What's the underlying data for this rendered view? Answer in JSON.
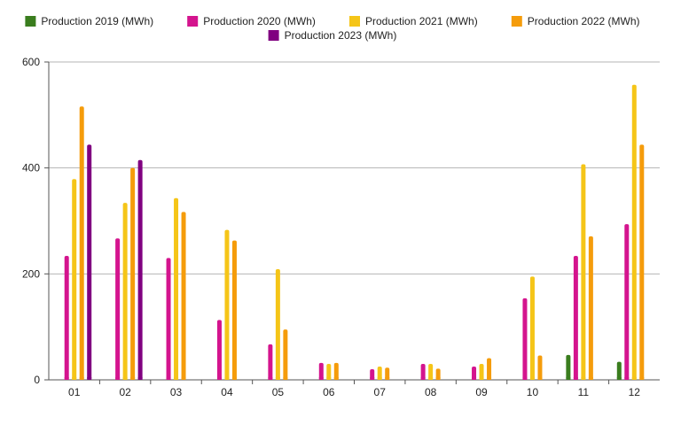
{
  "chart_data": {
    "type": "bar",
    "title": "",
    "xlabel": "",
    "ylabel": "",
    "categories": [
      "01",
      "02",
      "03",
      "04",
      "05",
      "06",
      "07",
      "08",
      "09",
      "10",
      "11",
      "12"
    ],
    "yticks": [
      0,
      200,
      400,
      600
    ],
    "ylim": [
      0,
      600
    ],
    "grid": true,
    "legend_position": "top-center",
    "series": [
      {
        "name": "Production 2019 (MWh)",
        "color": "#3a7d1e",
        "values": [
          null,
          null,
          null,
          null,
          null,
          null,
          null,
          null,
          null,
          null,
          47,
          34
        ]
      },
      {
        "name": "Production 2020 (MWh)",
        "color": "#d4148e",
        "values": [
          234,
          267,
          230,
          113,
          67,
          32,
          20,
          30,
          25,
          154,
          234,
          294
        ]
      },
      {
        "name": "Production 2021 (MWh)",
        "color": "#f5c518",
        "values": [
          379,
          334,
          343,
          283,
          209,
          30,
          25,
          30,
          30,
          195,
          407,
          557
        ]
      },
      {
        "name": "Production 2022 (MWh)",
        "color": "#f59c0b",
        "values": [
          516,
          400,
          317,
          263,
          95,
          32,
          23,
          21,
          41,
          46,
          271,
          444
        ]
      },
      {
        "name": "Production 2023 (MWh)",
        "color": "#800080",
        "values": [
          444,
          415,
          null,
          null,
          null,
          null,
          null,
          null,
          null,
          null,
          null,
          null
        ]
      }
    ]
  }
}
